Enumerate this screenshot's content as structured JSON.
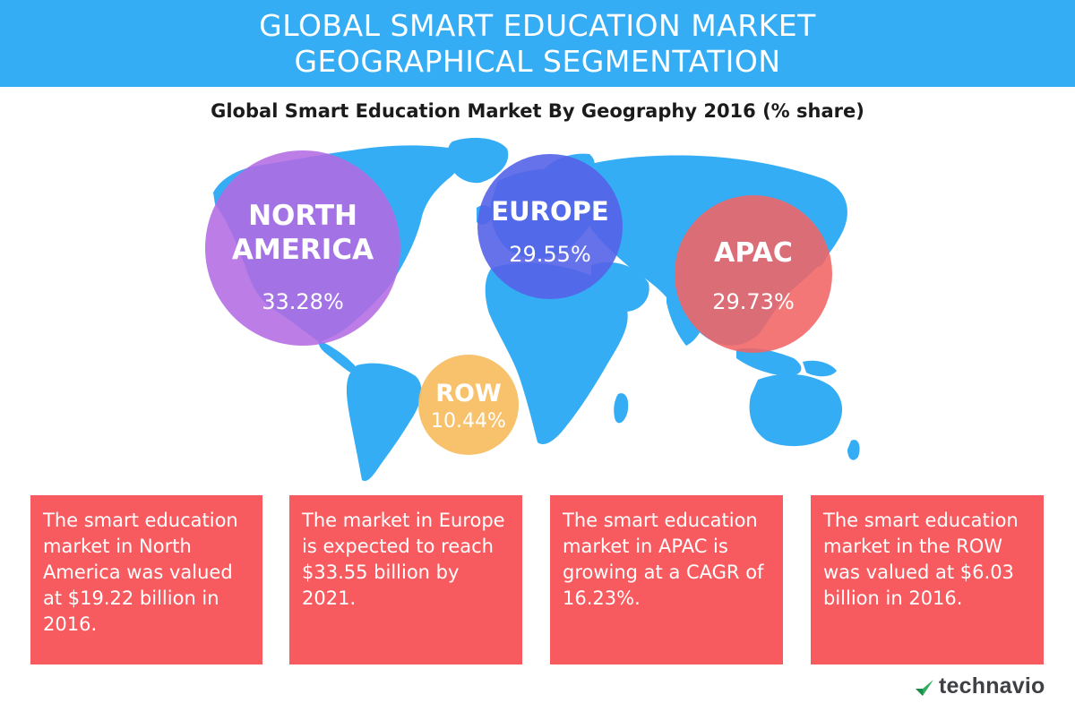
{
  "header": {
    "line1": "GLOBAL SMART EDUCATION MARKET",
    "line2": "GEOGRAPHICAL SEGMENTATION"
  },
  "colors": {
    "header_bg": "#35adf5",
    "map": "#35adf5",
    "north_america": "#b36be3",
    "europe": "#5563e8",
    "apac": "#f26464",
    "row": "#f7bc60",
    "note_box": "#f75b5f"
  },
  "chart_data": {
    "type": "bubble-map",
    "title": "Global Smart Education Market By Geography 2016 (% share)",
    "categories": [
      "NORTH AMERICA",
      "EUROPE",
      "APAC",
      "ROW"
    ],
    "values": [
      33.28,
      29.55,
      29.73,
      10.44
    ],
    "value_labels": [
      "33.28%",
      "29.55%",
      "29.73%",
      "10.44%"
    ],
    "regions": [
      {
        "name_lines": [
          "NORTH",
          "AMERICA"
        ],
        "value": 33.28,
        "label": "33.28%"
      },
      {
        "name_lines": [
          "EUROPE"
        ],
        "value": 29.55,
        "label": "29.55%"
      },
      {
        "name_lines": [
          "APAC"
        ],
        "value": 29.73,
        "label": "29.73%"
      },
      {
        "name_lines": [
          "ROW"
        ],
        "value": 10.44,
        "label": "10.44%"
      }
    ]
  },
  "notes": [
    {
      "text": "The smart education market in North America was valued at $19.22 billion in 2016."
    },
    {
      "text": "The market in Europe is expected to reach $33.55 billion by 2021."
    },
    {
      "text": "The smart education market in APAC is growing at a CAGR of 16.23%."
    },
    {
      "text": "The smart education market in the ROW was valued at $6.03 billion in 2016."
    }
  ],
  "brand": {
    "name": "technavio",
    "icon": "technavio-logo-icon"
  }
}
